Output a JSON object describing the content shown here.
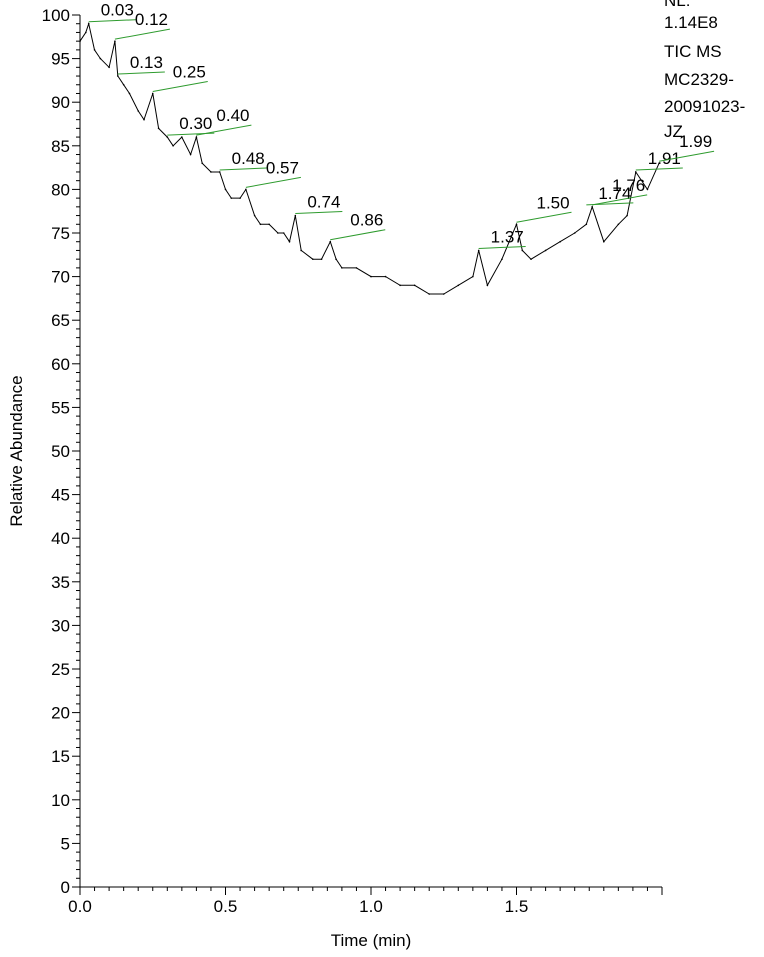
{
  "header_info": {
    "lines": [
      "NL:",
      "1.14E8",
      "TIC  MS",
      "MC2329-",
      "20091023-",
      "JZ"
    ]
  },
  "chart_data": {
    "type": "line",
    "title": "",
    "xlabel": "Time (min)",
    "ylabel": "Relative Abundance",
    "xlim": [
      0.0,
      2.0
    ],
    "ylim": [
      0,
      100
    ],
    "x_ticks": [
      "0.0",
      "0.5",
      "1.0",
      "1.5"
    ],
    "x_tick_values": [
      0.0,
      0.5,
      1.0,
      1.5
    ],
    "y_ticks": [
      "0",
      "5",
      "10",
      "15",
      "20",
      "25",
      "30",
      "35",
      "40",
      "45",
      "50",
      "55",
      "60",
      "65",
      "70",
      "75",
      "80",
      "85",
      "90",
      "95",
      "100"
    ],
    "y_tick_values": [
      0,
      5,
      10,
      15,
      20,
      25,
      30,
      35,
      40,
      45,
      50,
      55,
      60,
      65,
      70,
      75,
      80,
      85,
      90,
      95,
      100
    ],
    "grid": false,
    "series": [
      {
        "x": [
          0.0,
          0.02,
          0.03,
          0.05,
          0.07,
          0.1,
          0.12,
          0.13,
          0.15,
          0.17,
          0.2,
          0.22,
          0.25,
          0.27,
          0.3,
          0.32,
          0.35,
          0.38,
          0.4,
          0.42,
          0.45,
          0.48,
          0.5,
          0.52,
          0.55,
          0.57,
          0.6,
          0.62,
          0.65,
          0.68,
          0.7,
          0.72,
          0.74,
          0.76,
          0.8,
          0.83,
          0.86,
          0.88,
          0.9,
          0.95,
          1.0,
          1.05,
          1.1,
          1.15,
          1.2,
          1.25,
          1.3,
          1.35,
          1.37,
          1.4,
          1.45,
          1.5,
          1.52,
          1.55,
          1.6,
          1.65,
          1.7,
          1.74,
          1.76,
          1.8,
          1.85,
          1.88,
          1.91,
          1.95,
          1.99
        ],
        "y": [
          97,
          98,
          99,
          96,
          95,
          94,
          97,
          93,
          92,
          91,
          89,
          88,
          91,
          87,
          86,
          85,
          86,
          84,
          86,
          83,
          82,
          82,
          80,
          79,
          79,
          80,
          77,
          76,
          76,
          75,
          75,
          74,
          77,
          73,
          72,
          72,
          74,
          72,
          71,
          71,
          70,
          70,
          69,
          69,
          68,
          68,
          69,
          70,
          73,
          69,
          72,
          76,
          73,
          72,
          73,
          74,
          75,
          76,
          78,
          74,
          76,
          77,
          82,
          80,
          83
        ]
      }
    ],
    "annotations": [
      {
        "label": "0.03",
        "x": 0.03,
        "y": 99
      },
      {
        "label": "0.12",
        "x": 0.12,
        "y": 97
      },
      {
        "label": "0.13",
        "x": 0.13,
        "y": 93
      },
      {
        "label": "0.25",
        "x": 0.25,
        "y": 91
      },
      {
        "label": "0.30",
        "x": 0.3,
        "y": 86
      },
      {
        "label": "0.40",
        "x": 0.4,
        "y": 86
      },
      {
        "label": "0.48",
        "x": 0.48,
        "y": 82
      },
      {
        "label": "0.57",
        "x": 0.57,
        "y": 80
      },
      {
        "label": "0.74",
        "x": 0.74,
        "y": 77
      },
      {
        "label": "0.86",
        "x": 0.86,
        "y": 74
      },
      {
        "label": "1.37",
        "x": 1.37,
        "y": 73
      },
      {
        "label": "1.50",
        "x": 1.5,
        "y": 76
      },
      {
        "label": "1.74",
        "x": 1.74,
        "y": 78
      },
      {
        "label": "1.76",
        "x": 1.76,
        "y": 78
      },
      {
        "label": "1.91",
        "x": 1.91,
        "y": 82
      },
      {
        "label": "1.99",
        "x": 1.99,
        "y": 83
      }
    ]
  }
}
